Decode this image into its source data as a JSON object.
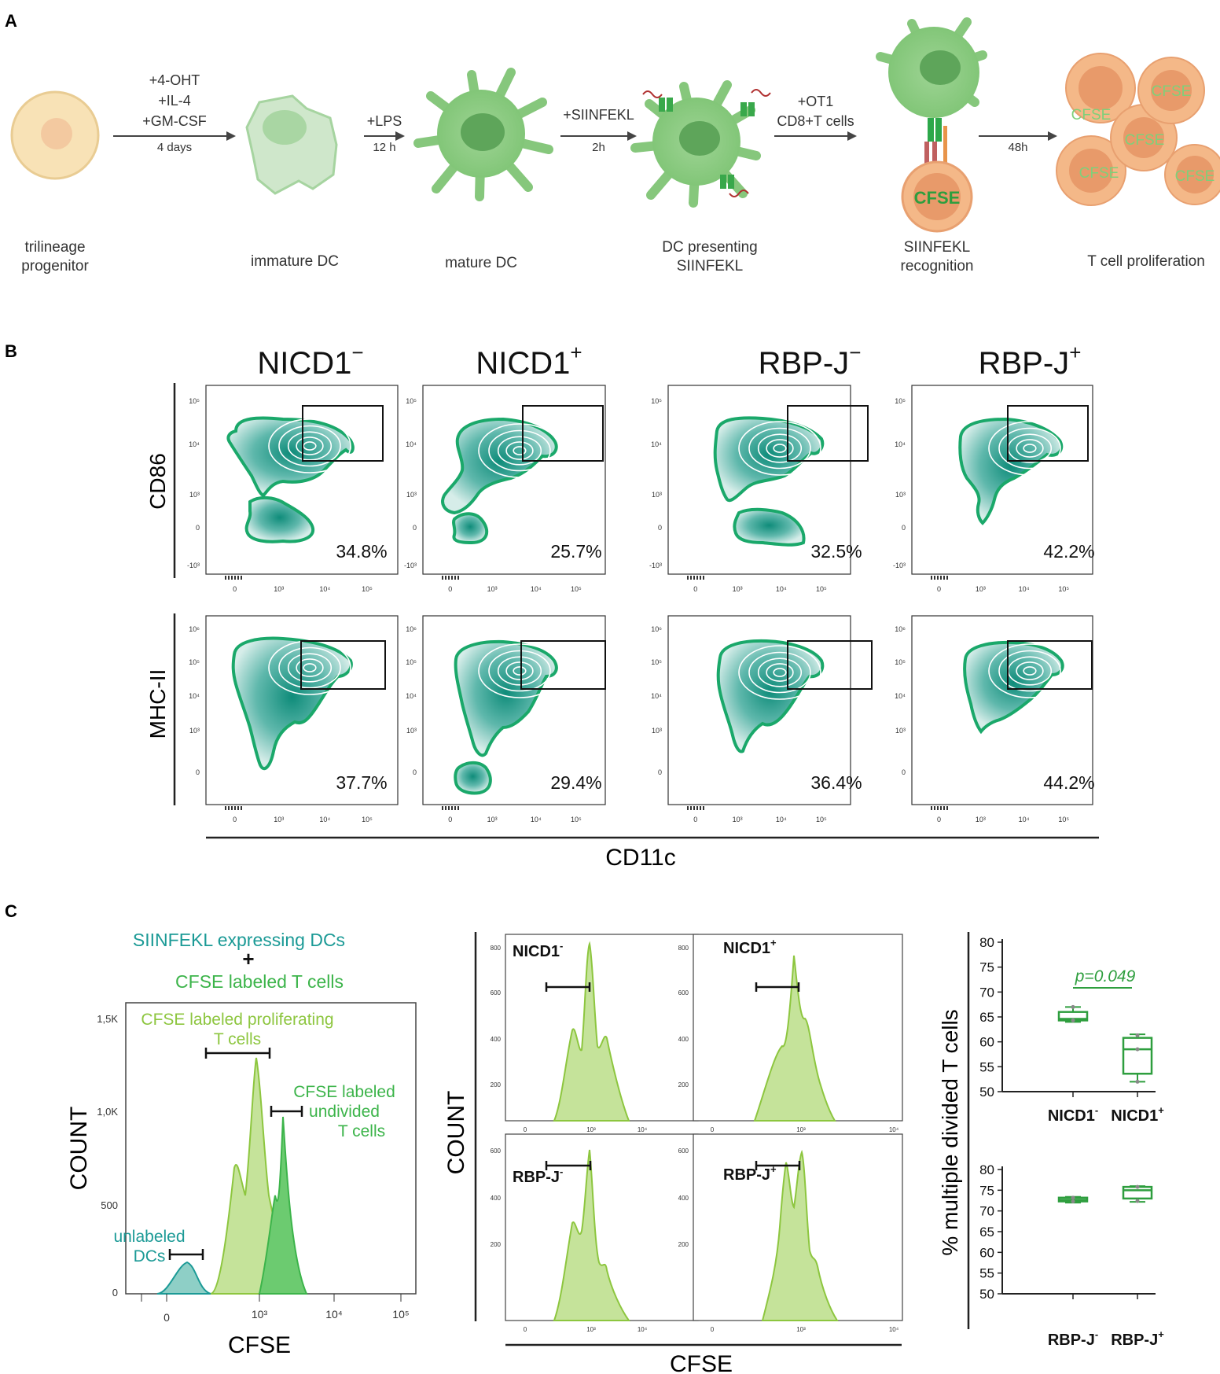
{
  "panelA": {
    "label": "A",
    "stages": [
      {
        "name": "trilineage",
        "name2": "progenitor"
      },
      {
        "name": "immature DC",
        "name2": ""
      },
      {
        "name": "mature DC",
        "name2": ""
      },
      {
        "name": "DC presenting",
        "name2": "SIINFEKL"
      },
      {
        "name": "SIINFEKL",
        "name2": "recognition"
      },
      {
        "name": "T cell proliferation",
        "name2": ""
      }
    ],
    "arrows": [
      {
        "top": [
          "+4-OHT",
          "+IL-4",
          "+GM-CSF"
        ],
        "bottom": "4 days"
      },
      {
        "top": [
          "+LPS"
        ],
        "bottom": "12 h"
      },
      {
        "top": [
          "+SIINFEKL"
        ],
        "bottom": "2h"
      },
      {
        "top": [
          "+OT1",
          "CD8+T cells"
        ],
        "bottom": ""
      },
      {
        "top": [],
        "bottom": "48h"
      }
    ],
    "cfse_label": "CFSE",
    "colors": {
      "green_cell": "#8fcf86",
      "green_dark": "#5eae5a",
      "orange_cell": "#f4b888",
      "orange_nucleus": "#e89a6a",
      "progenitor": "#f8e2b6"
    }
  },
  "panelB": {
    "label": "B",
    "columns": [
      "NICD1",
      "NICD1",
      "RBP-J",
      "RBP-J"
    ],
    "column_signs": [
      "−",
      "+",
      "−",
      "+"
    ],
    "rows": [
      {
        "ylabel": "CD86",
        "percentages": [
          "34.8%",
          "25.7%",
          "32.5%",
          "42.2%"
        ],
        "yticks": [
          "10⁵",
          "10⁴",
          "10³",
          "0",
          "-10³"
        ]
      },
      {
        "ylabel": "MHC-II",
        "percentages": [
          "37.7%",
          "29.4%",
          "36.4%",
          "44.2%"
        ],
        "yticks": [
          "10⁶",
          "10⁵",
          "10⁴",
          "10³",
          "0"
        ]
      }
    ],
    "xticks": [
      "0",
      "10³",
      "10⁴",
      "10⁵"
    ],
    "xlabel": "CD11c",
    "colors": {
      "contour": "#1aa86a",
      "fill": "#3aa89a"
    }
  },
  "panelC": {
    "label": "C",
    "left": {
      "title1": "SIINFEKL expressing DCs",
      "plus": "+",
      "title2": "CFSE labeled T cells",
      "gate_prolif": [
        "CFSE labeled proliferating",
        "T cells"
      ],
      "gate_undiv": [
        "CFSE labeled",
        "undivided",
        "T cells"
      ],
      "gate_dc": [
        "unlabeled",
        "DCs"
      ],
      "ylabel": "COUNT",
      "xlabel": "CFSE",
      "yticks": [
        "1,5K",
        "1,0K",
        "500",
        "0"
      ],
      "xticks": [
        "0",
        "10³",
        "10⁴",
        "10⁵"
      ],
      "colors": {
        "teal": "#1b9a96",
        "light_green": "#8dc63f",
        "green": "#3cb44a"
      }
    },
    "middle": {
      "ylabel": "COUNT",
      "xlabel": "CFSE",
      "panels": [
        {
          "name": "NICD1",
          "sign": "-",
          "yticks": [
            "800",
            "600",
            "400",
            "200"
          ]
        },
        {
          "name": "NICD1",
          "sign": "+",
          "yticks": [
            "800",
            "600",
            "400",
            "200"
          ]
        },
        {
          "name": "RBP-J",
          "sign": "-",
          "yticks": [
            "600",
            "400",
            "200"
          ]
        },
        {
          "name": "RBP-J",
          "sign": "+",
          "yticks": [
            "600",
            "400",
            "200"
          ]
        }
      ],
      "xticks": [
        "0",
        "10³",
        "10⁴"
      ]
    },
    "right": {
      "ylabel": "% multiple divided T cells",
      "pvalue": "p=0.049",
      "color": "#2e9e3e"
    }
  },
  "chart_data": [
    {
      "type": "box",
      "title": "",
      "ylabel": "% multiple divided T cells",
      "ylim": [
        50,
        80
      ],
      "yticks": [
        50,
        55,
        60,
        65,
        70,
        75,
        80
      ],
      "categories": [
        "NICD1⁻",
        "NICD1⁺"
      ],
      "series": [
        {
          "name": "NICD1⁻",
          "min": 64.0,
          "q1": 64.3,
          "median": 64.6,
          "q3": 66.0,
          "max": 67.0,
          "points": [
            64.3,
            67.0
          ]
        },
        {
          "name": "NICD1⁺",
          "min": 52.0,
          "q1": 53.6,
          "median": 58.5,
          "q3": 60.8,
          "max": 61.5,
          "points": [
            52.0,
            58.5,
            61.3
          ]
        }
      ],
      "annotation": "p=0.049"
    },
    {
      "type": "box",
      "title": "",
      "ylabel": "% multiple divided T cells",
      "ylim": [
        50,
        80
      ],
      "yticks": [
        50,
        55,
        60,
        65,
        70,
        75,
        80
      ],
      "categories": [
        "RBP-J⁻",
        "RBP-J⁺"
      ],
      "series": [
        {
          "name": "RBP-J⁻",
          "min": 72.0,
          "q1": 72.3,
          "median": 72.7,
          "q3": 73.2,
          "max": 73.4,
          "points": [
            72.3,
            73.2
          ]
        },
        {
          "name": "RBP-J⁺",
          "min": 72.2,
          "q1": 73.0,
          "median": 75.0,
          "q3": 75.8,
          "max": 76.0,
          "points": [
            72.4,
            75.8
          ]
        }
      ]
    }
  ]
}
